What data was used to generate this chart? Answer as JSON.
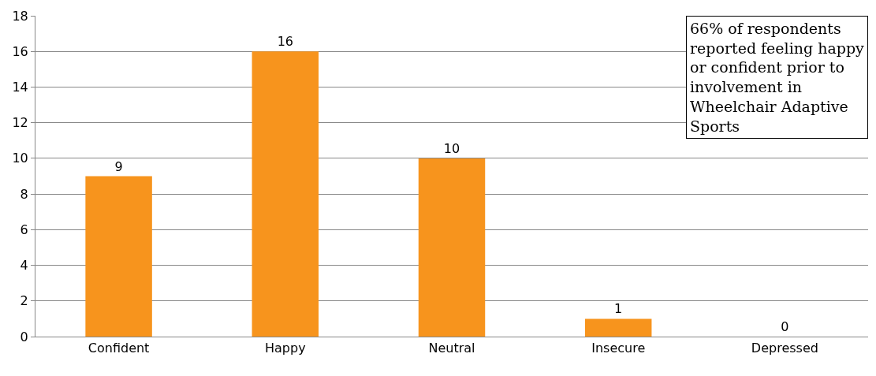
{
  "chart_data": {
    "type": "bar",
    "categories": [
      "Confident",
      "Happy",
      "Neutral",
      "Insecure",
      "Depressed"
    ],
    "values": [
      9,
      16,
      10,
      1,
      0
    ],
    "color": "#f7941d",
    "ylim": [
      0,
      18
    ],
    "yticks": [
      0,
      2,
      4,
      6,
      8,
      10,
      12,
      14,
      16,
      18
    ],
    "grid": "y",
    "data_labels": true,
    "annotations": [
      "66% of respondents reported feeling happy or confident prior to involvement in Wheelchair Adaptive Sports"
    ]
  }
}
